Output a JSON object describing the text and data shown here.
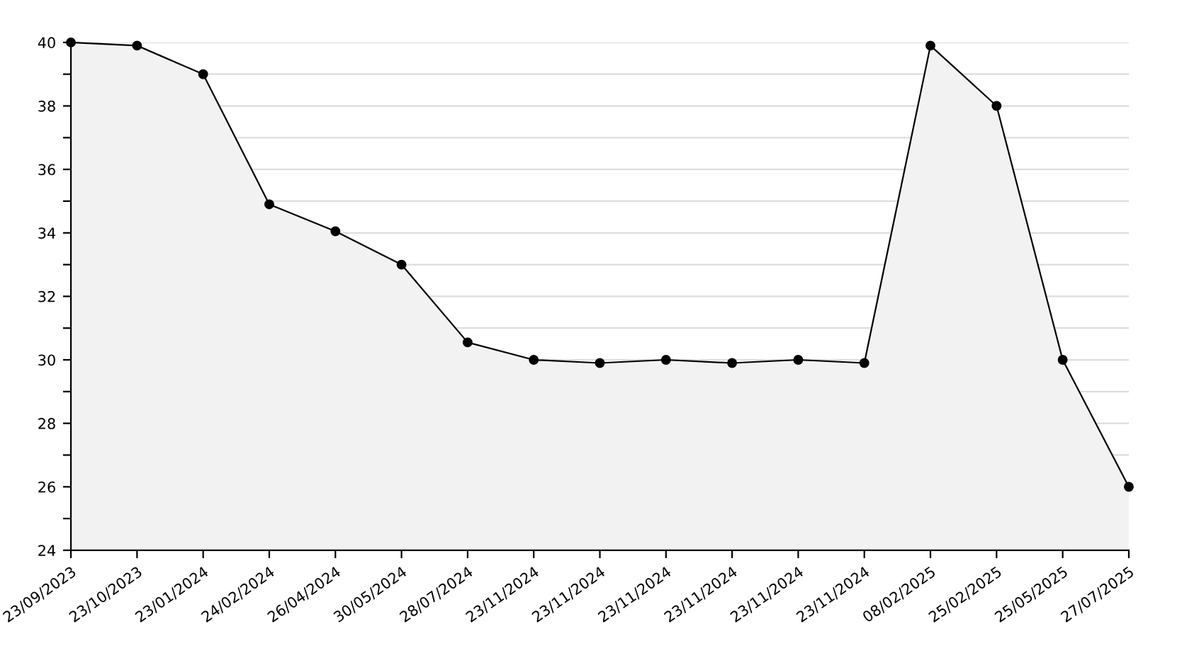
{
  "chart_data": {
    "type": "area",
    "categories": [
      "23/09/2023",
      "23/10/2023",
      "23/01/2024",
      "24/02/2024",
      "26/04/2024",
      "30/05/2024",
      "28/07/2024",
      "23/11/2024",
      "23/11/2024",
      "23/11/2024",
      "23/11/2024",
      "23/11/2024",
      "23/11/2024",
      "08/02/2025",
      "25/02/2025",
      "25/05/2025",
      "27/07/2025"
    ],
    "values": [
      40,
      39.9,
      39,
      34.9,
      34.05,
      33,
      30.55,
      30,
      29.9,
      30,
      29.9,
      30,
      29.9,
      39.9,
      38,
      30,
      26
    ],
    "color": "#000000",
    "ylim": [
      24,
      40
    ],
    "yticks": [
      24,
      {
        "value": 25,
        "label": null
      },
      26,
      {
        "value": 27,
        "label": null
      },
      28,
      {
        "value": 29,
        "label": null
      },
      30,
      {
        "value": 31,
        "label": null
      },
      32,
      {
        "value": 33,
        "label": null
      },
      34,
      {
        "value": 35,
        "label": null
      },
      36,
      {
        "value": 37,
        "label": null
      },
      38,
      {
        "value": 39,
        "label": null
      },
      40
    ],
    "grid": "y",
    "marker": "circle",
    "line_style": "solid"
  }
}
